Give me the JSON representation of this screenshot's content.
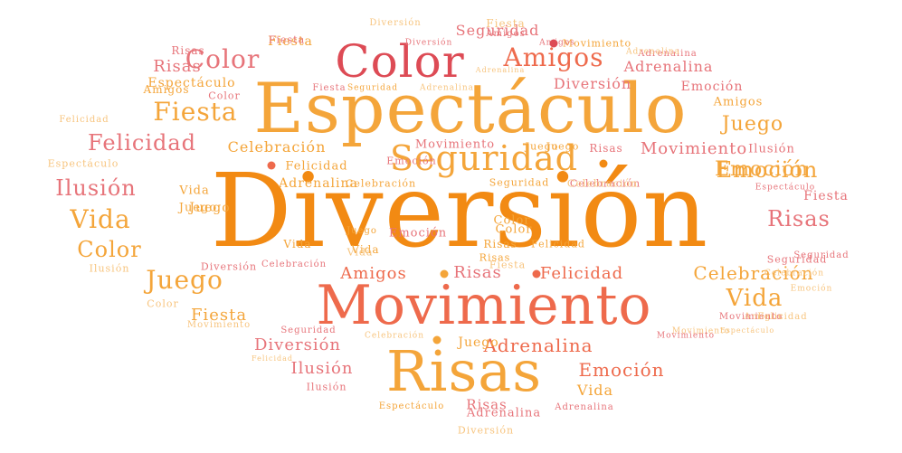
{
  "palette": {
    "orange": "#f28a13",
    "amber": "#f4a53a",
    "light": "#f7c47e",
    "pink": "#e7747a",
    "red": "#dd4b55",
    "coral": "#ee6a4c"
  },
  "words": [
    {
      "text": "Diversión",
      "color": "#f28a13"
    },
    {
      "text": "Espectáculo",
      "color": "#f4a53a"
    },
    {
      "text": "Movimiento",
      "color": "#ee6a4c"
    },
    {
      "text": "Risas",
      "color": "#f4a53a"
    },
    {
      "text": "Color",
      "color": "#dd4b55"
    },
    {
      "text": "Seguridad",
      "color": "#f4a53a"
    },
    {
      "text": "Amigos",
      "color": "#ee6a4c"
    },
    {
      "text": "Fiesta",
      "color": "#f4a53a"
    },
    {
      "text": "Felicidad",
      "color": "#e7747a"
    },
    {
      "text": "Ilusión",
      "color": "#e7747a"
    },
    {
      "text": "Vida",
      "color": "#f4a53a"
    },
    {
      "text": "Juego",
      "color": "#f4a53a"
    },
    {
      "text": "Emoción",
      "color": "#f4a53a"
    },
    {
      "text": "Risas",
      "color": "#e7747a"
    },
    {
      "text": "Vida",
      "color": "#f4a53a"
    },
    {
      "text": "Color",
      "color": "#f4a53a"
    },
    {
      "text": "Color",
      "color": "#e7747a"
    },
    {
      "text": "Juego",
      "color": "#f4a53a"
    },
    {
      "text": "Adrenalina",
      "color": "#ee6a4c"
    },
    {
      "text": "Celebración",
      "color": "#f4a53a"
    },
    {
      "text": "Emoción",
      "color": "#ee6a4c"
    },
    {
      "text": "Diversión",
      "color": "#e7747a"
    },
    {
      "text": "Ilusión",
      "color": "#e7747a"
    },
    {
      "text": "Risas",
      "color": "#e7747a"
    },
    {
      "text": "Fiesta",
      "color": "#f4a53a"
    },
    {
      "text": "Felicidad",
      "color": "#ee6a4c"
    },
    {
      "text": "Amigos",
      "color": "#ee6a4c"
    },
    {
      "text": "Risas",
      "color": "#e7747a"
    },
    {
      "text": "Espectáculo",
      "color": "#f4a53a"
    },
    {
      "text": "Movimiento",
      "color": "#e7747a"
    },
    {
      "text": "Celebración",
      "color": "#f4a53a"
    },
    {
      "text": "Diversión",
      "color": "#e7747a"
    },
    {
      "text": "Adrenalina",
      "color": "#e7747a"
    },
    {
      "text": "Emoción",
      "color": "#e7747a"
    },
    {
      "text": "Juego",
      "color": "#f4a53a"
    },
    {
      "text": "Seguridad",
      "color": "#e7747a"
    },
    {
      "text": "Fiesta",
      "color": "#f4a53a"
    },
    {
      "text": "Vida",
      "color": "#f4a53a"
    },
    {
      "text": "Ilusión",
      "color": "#e7747a"
    },
    {
      "text": "Felicidad",
      "color": "#f4a53a"
    },
    {
      "text": "Adrenalina",
      "color": "#f4a53a"
    },
    {
      "text": "Fiesta",
      "color": "#e7747a"
    },
    {
      "text": "Amigos",
      "color": "#f4a53a"
    },
    {
      "text": "Risas",
      "color": "#e7747a"
    },
    {
      "text": "Movimiento",
      "color": "#e7747a"
    },
    {
      "text": "Celebración",
      "color": "#e7747a"
    },
    {
      "text": "Felicidad",
      "color": "#f4a53a"
    },
    {
      "text": "Risas",
      "color": "#e7747a"
    },
    {
      "text": "Celebración",
      "color": "#f4a53a"
    },
    {
      "text": "Vida",
      "color": "#f4a53a"
    },
    {
      "text": "Emoción",
      "color": "#e7747a"
    },
    {
      "text": "Seguridad",
      "color": "#f4a53a"
    },
    {
      "text": "Color",
      "color": "#f4a53a"
    },
    {
      "text": "Vida",
      "color": "#f4a53a"
    },
    {
      "text": "Juego",
      "color": "#f4a53a"
    },
    {
      "text": "Risas",
      "color": "#f4a53a"
    },
    {
      "text": "Espectáculo",
      "color": "#f7c47e"
    },
    {
      "text": "Fiesta",
      "color": "#e7747a"
    },
    {
      "text": "Risas",
      "color": "#e7747a"
    },
    {
      "text": "Movimiento",
      "color": "#f4a53a"
    },
    {
      "text": "Juego",
      "color": "#f4a53a"
    },
    {
      "text": "Vida",
      "color": "#f4a53a"
    },
    {
      "text": "Color",
      "color": "#e7747a"
    },
    {
      "text": "Juego",
      "color": "#f4a53a"
    },
    {
      "text": "Juego",
      "color": "#f4a53a"
    },
    {
      "text": "Emoción",
      "color": "#f4a53a"
    },
    {
      "text": "Adrenalina",
      "color": "#e7747a"
    },
    {
      "text": "Fiesta",
      "color": "#f7c47e"
    },
    {
      "text": "Color",
      "color": "#f4a53a"
    },
    {
      "text": "Juego",
      "color": "#f4a53a"
    },
    {
      "text": "Vida",
      "color": "#f7c47e"
    },
    {
      "text": "Risas",
      "color": "#f4a53a"
    },
    {
      "text": "Emoción",
      "color": "#e7747a"
    },
    {
      "text": "Celebración",
      "color": "#f7c47e"
    },
    {
      "text": "Adrenalina",
      "color": "#e7747a"
    },
    {
      "text": "Fiesta",
      "color": "#f7c47e"
    },
    {
      "text": "Amigos",
      "color": "#e7747a"
    },
    {
      "text": "Diversión",
      "color": "#e7747a"
    },
    {
      "text": "Celebración",
      "color": "#e7747a"
    },
    {
      "text": "Ilusión",
      "color": "#f7c47e"
    },
    {
      "text": "Color",
      "color": "#f7c47e"
    },
    {
      "text": "Movimiento",
      "color": "#f7c47e"
    },
    {
      "text": "Seguridad",
      "color": "#e7747a"
    },
    {
      "text": "Celebración",
      "color": "#f7c47e"
    },
    {
      "text": "Diversión",
      "color": "#f7c47e"
    },
    {
      "text": "Movimiento",
      "color": "#f7c47e"
    },
    {
      "text": "Felicidad",
      "color": "#f7c47e"
    },
    {
      "text": "Amigos",
      "color": "#f7c47e"
    },
    {
      "text": "Ilusión",
      "color": "#e7747a"
    },
    {
      "text": "Espectáculo",
      "color": "#f4a53a"
    },
    {
      "text": "Adrenalina",
      "color": "#e7747a"
    },
    {
      "text": "Diversión",
      "color": "#f7c47e"
    },
    {
      "text": "Amigos",
      "color": "#f4a53a"
    },
    {
      "text": "Felicidad",
      "color": "#f7c47e"
    },
    {
      "text": "Movimiento",
      "color": "#e7747a"
    },
    {
      "text": "Seguridad",
      "color": "#e7747a"
    },
    {
      "text": "Emoción",
      "color": "#f7c47e"
    },
    {
      "text": "Espectáculo",
      "color": "#e7747a"
    },
    {
      "text": "Seguridad",
      "color": "#e7747a"
    },
    {
      "text": "Celebración",
      "color": "#f7c47e"
    },
    {
      "text": "Adrenalina",
      "color": "#f7c47e"
    },
    {
      "text": "Felicidad",
      "color": "#f7c47e"
    },
    {
      "text": "Espectáculo",
      "color": "#f7c47e"
    },
    {
      "text": "Seguridad",
      "color": "#f4a53a"
    },
    {
      "text": "Fiesta",
      "color": "#e7747a"
    },
    {
      "text": "Diversión",
      "color": "#e7747a"
    },
    {
      "text": "Adrenalina",
      "color": "#f7c47e"
    },
    {
      "text": "Amigos",
      "color": "#e7747a"
    },
    {
      "text": "Movimiento",
      "color": "#e7747a"
    },
    {
      "text": "Adrenalina",
      "color": "#f7c47e"
    }
  ]
}
